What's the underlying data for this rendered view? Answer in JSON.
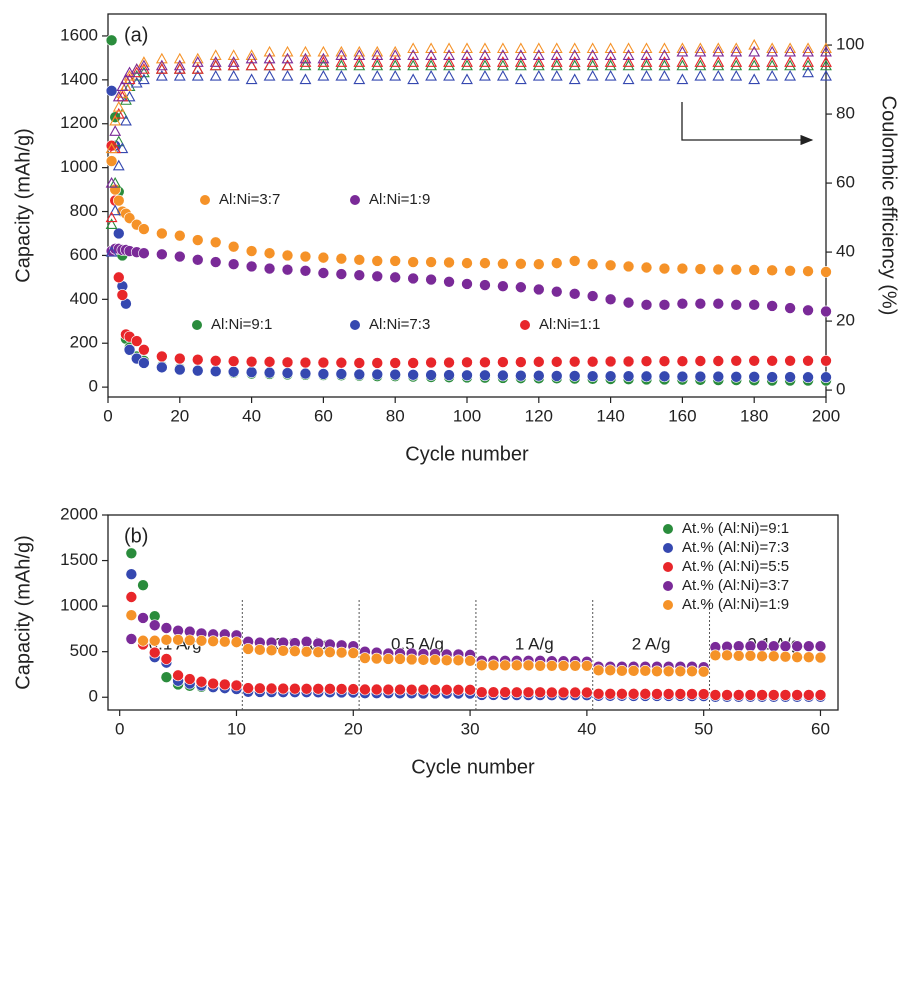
{
  "chart_data": [
    {
      "type": "scatter",
      "label": "(a)",
      "xlabel": "Cycle number",
      "ylabel": "Capacity (mAh/g)",
      "y2label": "Coulombic efficiency (%)",
      "xlim": [
        0,
        200
      ],
      "ylim": [
        -45,
        1700
      ],
      "y2lim": [
        -2,
        109
      ],
      "xticks": [
        0,
        20,
        40,
        60,
        80,
        100,
        120,
        140,
        160,
        180,
        200
      ],
      "yticks": [
        0,
        200,
        400,
        600,
        800,
        1000,
        1200,
        1400,
        1600
      ],
      "y2ticks": [
        0,
        20,
        40,
        60,
        80,
        100
      ],
      "legend": "inline",
      "x": [
        1,
        2,
        3,
        4,
        5,
        6,
        8,
        10,
        15,
        20,
        25,
        30,
        35,
        40,
        45,
        50,
        55,
        60,
        65,
        70,
        75,
        80,
        85,
        90,
        95,
        100,
        105,
        110,
        115,
        120,
        125,
        130,
        135,
        140,
        145,
        150,
        155,
        160,
        165,
        170,
        175,
        180,
        185,
        190,
        195,
        200
      ],
      "series": [
        {
          "name": "Al:Ni=9:1",
          "color": "#2a8c3c",
          "marker": "circle",
          "values": [
            1580,
            1230,
            890,
            600,
            220,
            180,
            140,
            120,
            95,
            85,
            75,
            70,
            65,
            62,
            60,
            58,
            56,
            55,
            54,
            52,
            50,
            50,
            48,
            46,
            45,
            44,
            43,
            42,
            41,
            40,
            40,
            39,
            38,
            37,
            36,
            35,
            35,
            34,
            33,
            32,
            32,
            31,
            30,
            30,
            30,
            30
          ]
        },
        {
          "name": "Al:Ni=7:3",
          "color": "#3548b0",
          "marker": "circle",
          "values": [
            1350,
            1100,
            700,
            460,
            380,
            170,
            130,
            110,
            90,
            80,
            75,
            72,
            70,
            68,
            66,
            64,
            62,
            60,
            60,
            58,
            58,
            57,
            56,
            55,
            55,
            54,
            54,
            53,
            52,
            52,
            51,
            51,
            50,
            50,
            50,
            49,
            49,
            48,
            48,
            48,
            47,
            47,
            46,
            46,
            45,
            45
          ]
        },
        {
          "name": "Al:Ni=1:1",
          "color": "#e8262a",
          "marker": "circle",
          "values": [
            1100,
            850,
            500,
            420,
            240,
            230,
            210,
            170,
            140,
            130,
            125,
            120,
            118,
            116,
            115,
            113,
            112,
            112,
            111,
            110,
            110,
            110,
            110,
            112,
            112,
            113,
            113,
            114,
            114,
            115,
            115,
            116,
            116,
            117,
            117,
            118,
            118,
            118,
            119,
            119,
            120,
            120,
            120,
            120,
            120,
            120
          ]
        },
        {
          "name": "Al:Ni=3:7",
          "color": "#f59228",
          "marker": "circle",
          "values": [
            1030,
            900,
            850,
            800,
            790,
            770,
            740,
            720,
            700,
            690,
            670,
            660,
            640,
            620,
            610,
            600,
            595,
            590,
            585,
            580,
            575,
            575,
            570,
            570,
            568,
            565,
            565,
            562,
            562,
            560,
            565,
            575,
            560,
            555,
            550,
            545,
            540,
            540,
            538,
            536,
            535,
            534,
            532,
            530,
            528,
            525
          ]
        },
        {
          "name": "Al:Ni=1:9",
          "color": "#7a2a98",
          "marker": "circle",
          "values": [
            620,
            630,
            630,
            625,
            625,
            620,
            615,
            610,
            605,
            595,
            580,
            570,
            560,
            550,
            540,
            535,
            530,
            520,
            515,
            510,
            505,
            500,
            495,
            490,
            480,
            470,
            465,
            460,
            455,
            445,
            435,
            425,
            415,
            400,
            385,
            375,
            375,
            380,
            380,
            380,
            375,
            375,
            370,
            360,
            350,
            345
          ]
        },
        {
          "color": "#2a8c3c",
          "marker": "triangle-open",
          "axis": "y2",
          "values": [
            48,
            60,
            72,
            80,
            84,
            88,
            91,
            92,
            93,
            93,
            93,
            94,
            94,
            94,
            94,
            94,
            94,
            94,
            94,
            94,
            94,
            94,
            94,
            94,
            94,
            94,
            94,
            94,
            94,
            94,
            94,
            94,
            94,
            94,
            94,
            94,
            94,
            94,
            94,
            94,
            94,
            94,
            94,
            94,
            94,
            94
          ]
        },
        {
          "color": "#3548b0",
          "marker": "triangle-open",
          "axis": "y2",
          "values": [
            40,
            52,
            65,
            70,
            78,
            85,
            89,
            90,
            91,
            91,
            91,
            91,
            91,
            90,
            91,
            91,
            90,
            91,
            91,
            90,
            91,
            91,
            90,
            91,
            91,
            90,
            91,
            91,
            90,
            91,
            91,
            90,
            91,
            91,
            90,
            91,
            91,
            90,
            91,
            91,
            91,
            90,
            91,
            91,
            92,
            91
          ]
        },
        {
          "color": "#e8262a",
          "marker": "triangle-open",
          "axis": "y2",
          "values": [
            50,
            70,
            80,
            85,
            88,
            90,
            92,
            93,
            93,
            93,
            93,
            94,
            94,
            94,
            94,
            94,
            95,
            95,
            95,
            95,
            95,
            95,
            95,
            95,
            95,
            95,
            95,
            95,
            95,
            95,
            95,
            95,
            95,
            95,
            95,
            95,
            95,
            95,
            95,
            95,
            95,
            95,
            95,
            95,
            95,
            95
          ]
        },
        {
          "color": "#f59228",
          "marker": "triangle-open",
          "axis": "y2",
          "values": [
            70,
            78,
            82,
            86,
            88,
            91,
            93,
            95,
            96,
            96,
            96,
            97,
            97,
            97,
            98,
            98,
            98,
            98,
            98,
            98,
            98,
            98,
            99,
            99,
            99,
            99,
            99,
            99,
            99,
            99,
            99,
            99,
            99,
            99,
            99,
            99,
            99,
            99,
            99,
            99,
            99,
            100,
            99,
            99,
            99,
            99
          ]
        },
        {
          "color": "#7a2a98",
          "marker": "triangle-open",
          "axis": "y2",
          "values": [
            60,
            75,
            85,
            88,
            90,
            92,
            93,
            94,
            94,
            94,
            95,
            95,
            95,
            96,
            96,
            96,
            96,
            96,
            97,
            97,
            97,
            97,
            97,
            97,
            97,
            97,
            97,
            97,
            97,
            97,
            97,
            97,
            97,
            97,
            97,
            97,
            97,
            98,
            98,
            98,
            98,
            98,
            98,
            98,
            98,
            98
          ]
        }
      ]
    },
    {
      "type": "scatter",
      "label": "(b)",
      "xlabel": "Cycle number",
      "ylabel": "Capacity (mAh/g)",
      "xlim": [
        -1,
        61.5
      ],
      "ylim": [
        -140,
        2000
      ],
      "xticks": [
        0,
        10,
        20,
        30,
        40,
        50,
        60
      ],
      "yticks": [
        0,
        500,
        1000,
        1500,
        2000
      ],
      "legend": "upper right",
      "dividers": [
        10.5,
        20.5,
        30.5,
        40.5,
        50.5
      ],
      "annotations": [
        "0.1 A/g",
        "0.2 A/g",
        "0.5 A/g",
        "1 A/g",
        "2 A/g",
        "0.1 A/g"
      ],
      "x": [
        1,
        2,
        3,
        4,
        5,
        6,
        7,
        8,
        9,
        10,
        11,
        12,
        13,
        14,
        15,
        16,
        17,
        18,
        19,
        20,
        21,
        22,
        23,
        24,
        25,
        26,
        27,
        28,
        29,
        30,
        31,
        32,
        33,
        34,
        35,
        36,
        37,
        38,
        39,
        40,
        41,
        42,
        43,
        44,
        45,
        46,
        47,
        48,
        49,
        50,
        51,
        52,
        53,
        54,
        55,
        56,
        57,
        58,
        59,
        60
      ],
      "series": [
        {
          "name": "At.% (Al:Ni)=9:1",
          "color": "#2a8c3c",
          "marker": "circle",
          "values": [
            1580,
            1230,
            890,
            220,
            140,
            125,
            115,
            105,
            100,
            95,
            65,
            62,
            60,
            58,
            57,
            56,
            55,
            55,
            54,
            53,
            50,
            48,
            47,
            46,
            45,
            45,
            44,
            44,
            43,
            43,
            30,
            30,
            29,
            29,
            28,
            28,
            28,
            27,
            27,
            27,
            20,
            20,
            19,
            19,
            19,
            18,
            18,
            18,
            18,
            18,
            10,
            10,
            10,
            10,
            10,
            10,
            10,
            10,
            10,
            10
          ]
        },
        {
          "name": "At.% (Al:Ni)=7:3",
          "color": "#3548b0",
          "marker": "circle",
          "values": [
            1350,
            600,
            440,
            380,
            180,
            150,
            130,
            110,
            100,
            90,
            60,
            58,
            57,
            56,
            55,
            55,
            54,
            54,
            53,
            52,
            45,
            44,
            44,
            43,
            43,
            42,
            42,
            41,
            41,
            40,
            25,
            25,
            25,
            24,
            24,
            24,
            23,
            23,
            23,
            23,
            15,
            15,
            15,
            14,
            14,
            14,
            14,
            14,
            13,
            13,
            5,
            5,
            5,
            5,
            5,
            5,
            5,
            5,
            5,
            5
          ]
        },
        {
          "name": "At.% (Al:Ni)=5:5",
          "color": "#e8262a",
          "marker": "circle",
          "values": [
            1100,
            580,
            490,
            420,
            240,
            200,
            170,
            150,
            140,
            130,
            100,
            98,
            96,
            95,
            94,
            93,
            92,
            92,
            91,
            90,
            85,
            85,
            84,
            84,
            83,
            83,
            82,
            82,
            82,
            81,
            55,
            55,
            55,
            54,
            54,
            54,
            53,
            53,
            53,
            52,
            38,
            38,
            37,
            37,
            37,
            36,
            36,
            36,
            36,
            35,
            25,
            25,
            25,
            25,
            25,
            25,
            25,
            25,
            25,
            25
          ]
        },
        {
          "name": "At.% (Al:Ni)=3:7",
          "color": "#7a2a98",
          "marker": "circle",
          "values": [
            640,
            870,
            790,
            760,
            730,
            720,
            700,
            690,
            690,
            680,
            610,
            600,
            600,
            600,
            595,
            610,
            590,
            580,
            570,
            560,
            500,
            490,
            480,
            480,
            480,
            475,
            475,
            470,
            470,
            465,
            400,
            400,
            400,
            400,
            400,
            400,
            395,
            395,
            395,
            390,
            335,
            335,
            335,
            335,
            335,
            335,
            335,
            335,
            335,
            330,
            550,
            555,
            560,
            560,
            565,
            560,
            560,
            560,
            560,
            560
          ]
        },
        {
          "name": "At.% (Al:Ni)=1:9",
          "color": "#f59228",
          "marker": "circle",
          "values": [
            900,
            620,
            620,
            630,
            630,
            625,
            620,
            615,
            610,
            605,
            530,
            520,
            515,
            510,
            505,
            500,
            495,
            495,
            490,
            485,
            430,
            425,
            420,
            420,
            415,
            410,
            410,
            405,
            405,
            400,
            350,
            350,
            350,
            350,
            350,
            345,
            345,
            345,
            345,
            345,
            295,
            295,
            290,
            290,
            290,
            285,
            285,
            285,
            285,
            280,
            460,
            460,
            455,
            455,
            450,
            450,
            445,
            440,
            440,
            435
          ]
        }
      ]
    }
  ]
}
